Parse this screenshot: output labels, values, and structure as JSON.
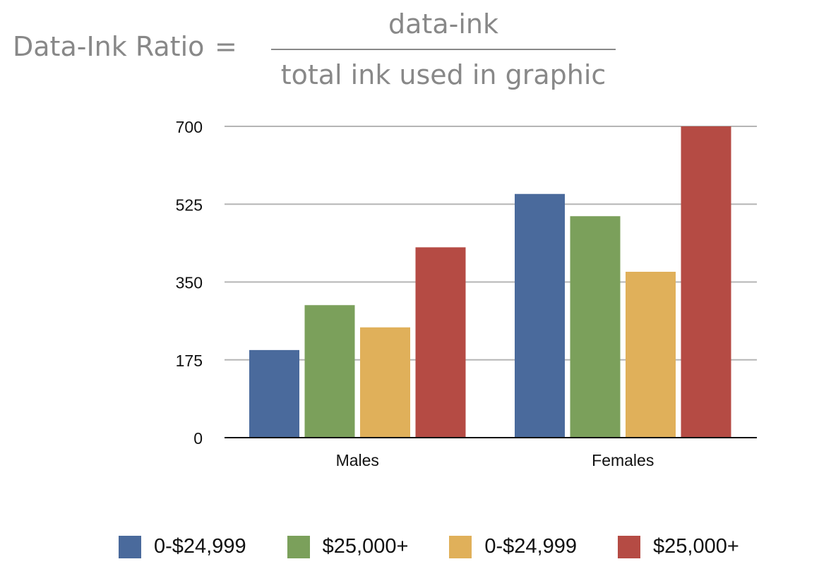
{
  "formula": {
    "label": "Data-Ink Ratio",
    "equals": "=",
    "numerator": "data-ink",
    "denominator": "total ink used in graphic"
  },
  "chart_data": {
    "type": "bar",
    "categories": [
      "Males",
      "Females"
    ],
    "series": [
      {
        "name": "0-$24,999",
        "color": "#4a6a9c",
        "values": [
          197,
          548
        ]
      },
      {
        "name": "$25,000+",
        "color": "#7ba05b",
        "values": [
          298,
          498
        ]
      },
      {
        "name": "0-$24,999",
        "color": "#e0b05a",
        "values": [
          248,
          373
        ]
      },
      {
        "name": "$25,000+",
        "color": "#b54b44",
        "values": [
          428,
          700
        ]
      }
    ],
    "ylim": [
      0,
      700
    ],
    "yticks": [
      "0",
      "175",
      "350",
      "525",
      "700"
    ],
    "xlabel": "",
    "ylabel": "",
    "title": "",
    "grid": true,
    "legend_position": "bottom"
  }
}
